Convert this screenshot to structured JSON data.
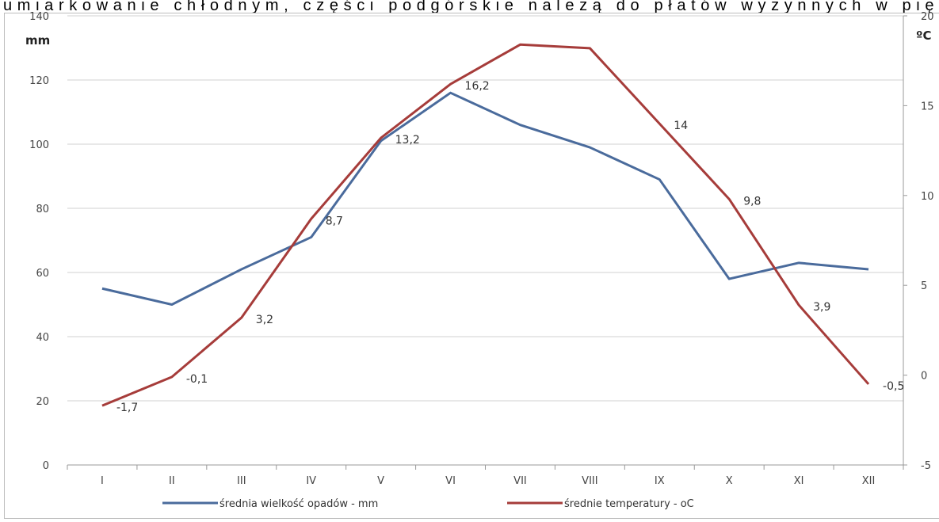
{
  "page_text": "umiarkowanie chłodnym, części podgórskie należą do płatów wyżynnych w piętr",
  "chart_data": {
    "type": "line",
    "y_label": "mm",
    "y2_label": "ºC",
    "categories": [
      "I",
      "II",
      "III",
      "IV",
      "V",
      "VI",
      "VII",
      "VIII",
      "IX",
      "X",
      "XI",
      "XII"
    ],
    "series": [
      {
        "name": "średnia wielkość opadów - mm",
        "color": "#4a6b9c",
        "values": [
          55,
          50,
          61,
          71,
          101,
          116,
          106,
          99,
          89,
          58,
          63,
          61
        ]
      },
      {
        "name": "średnie temperatury - oC",
        "color": "#a63c3a",
        "axis": "y2",
        "values": [
          -1.7,
          -0.1,
          3.2,
          8.7,
          13.2,
          16.2,
          18.4,
          18.2,
          14,
          9.8,
          3.9,
          -0.5
        ],
        "value_labels": [
          "-1,7",
          "-0,1",
          "3,2",
          "8,7",
          "13,2",
          "16,2",
          null,
          null,
          "14",
          "9,8",
          "3,9",
          "-0,5"
        ]
      }
    ],
    "ylim": [
      0,
      140
    ],
    "yticks": [
      0,
      20,
      40,
      60,
      80,
      100,
      120,
      140
    ],
    "y2lim": [
      -5,
      20
    ],
    "y2ticks": [
      -5,
      0,
      5,
      10,
      15,
      20
    ],
    "grid": true,
    "legend": "bottom"
  }
}
